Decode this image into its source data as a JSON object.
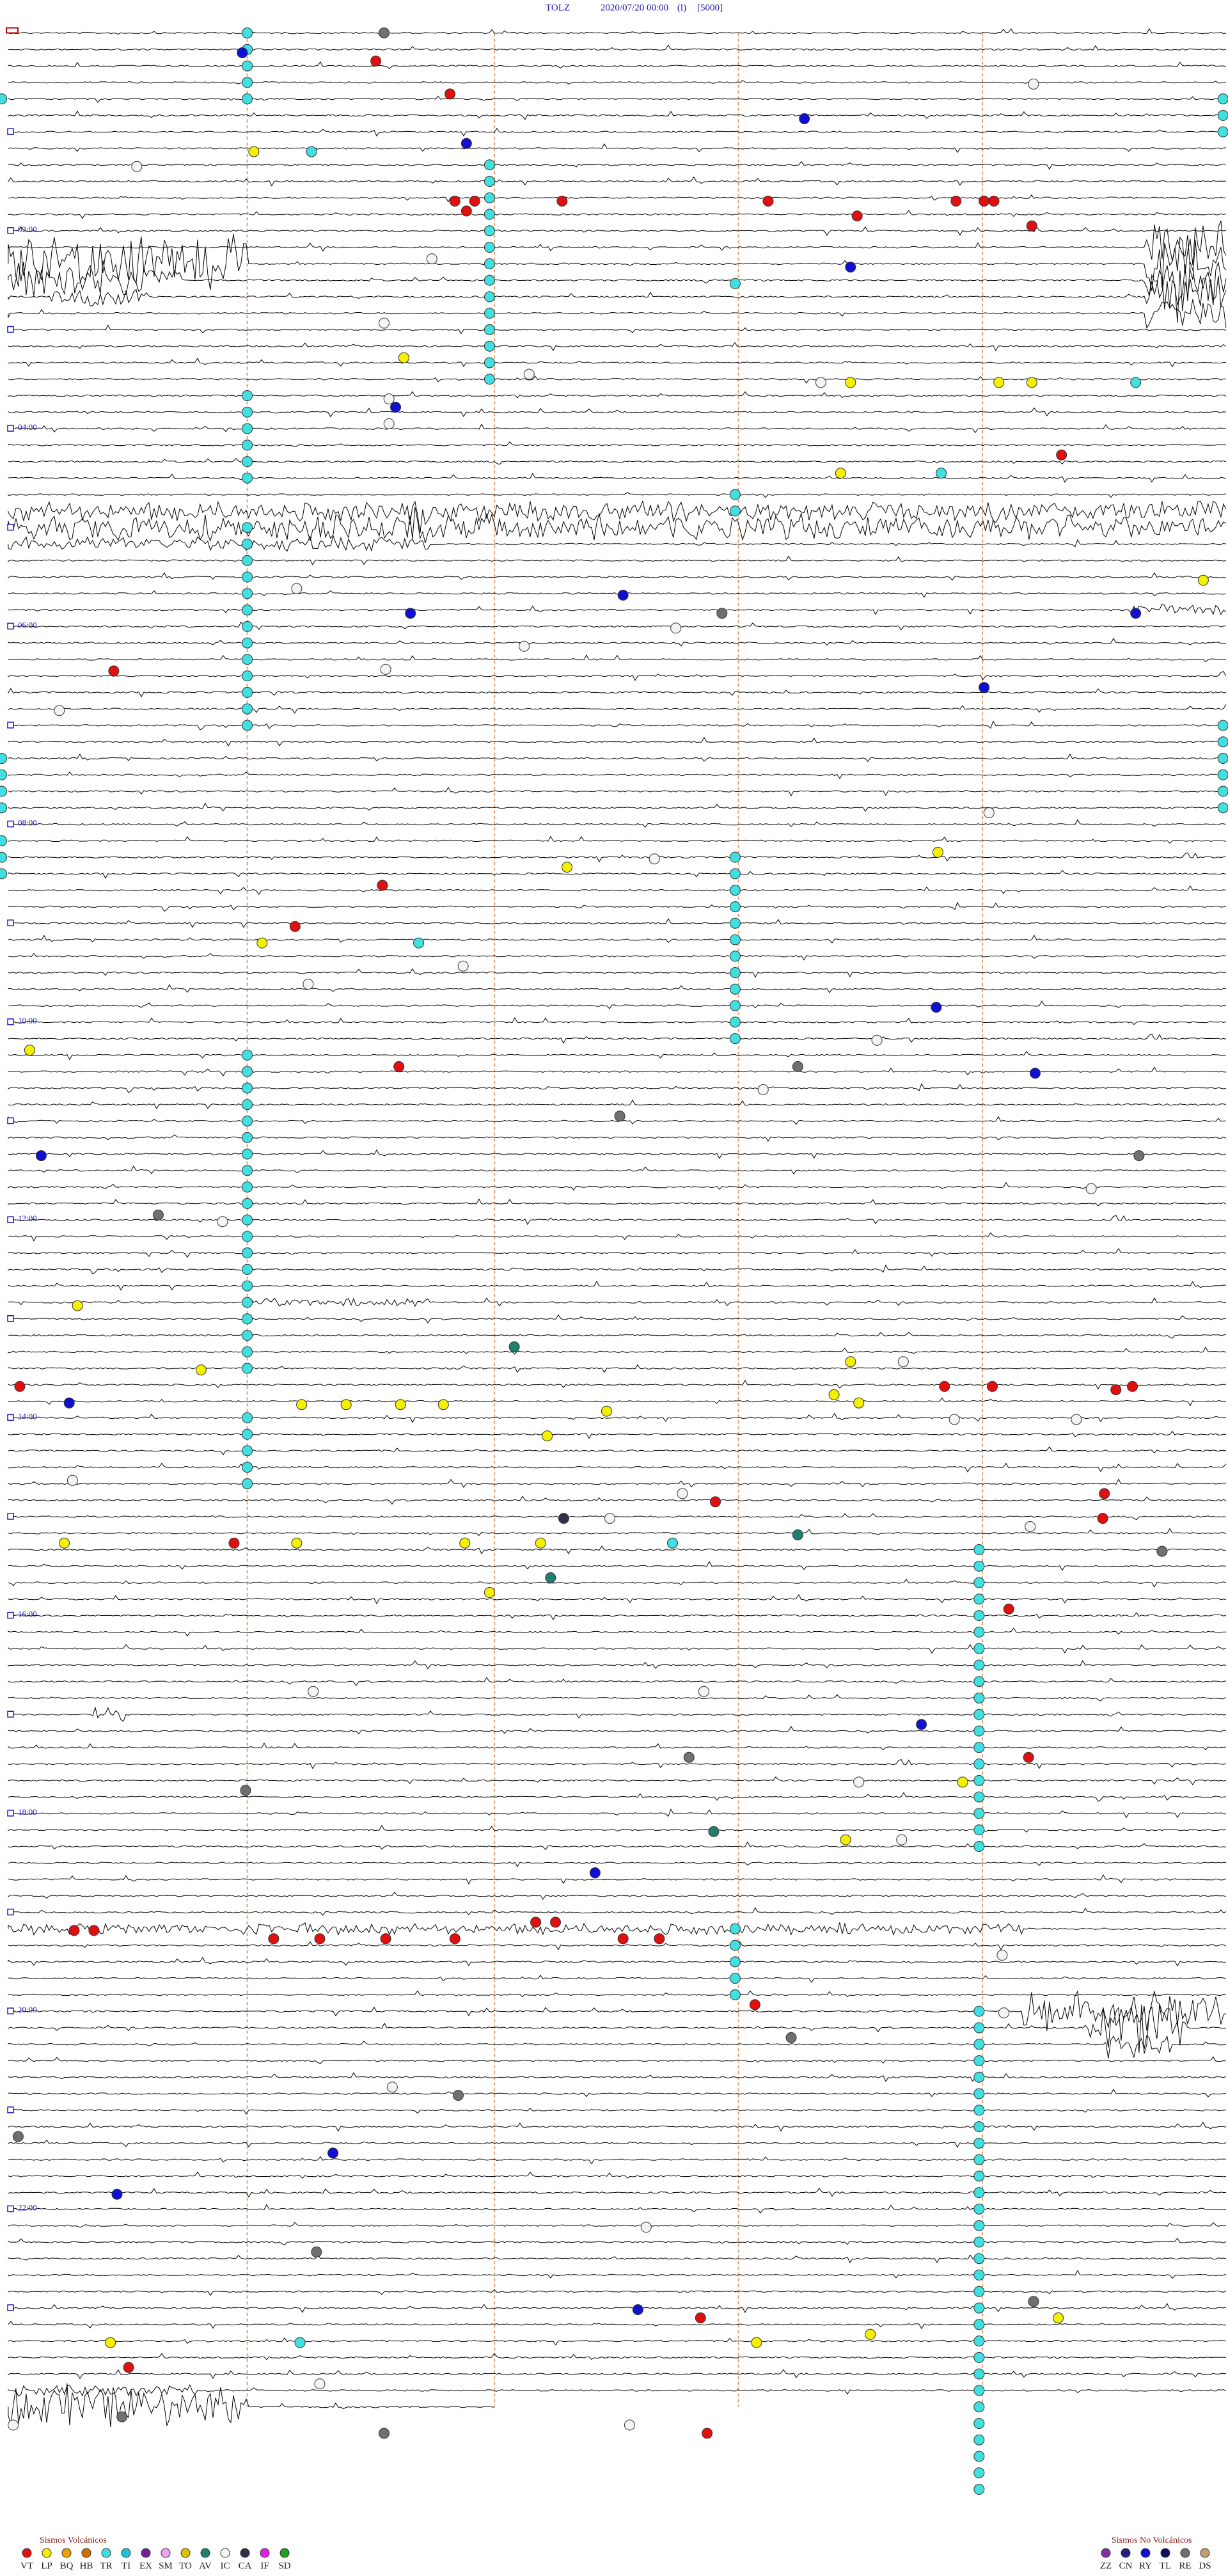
{
  "header": {
    "station": "TOLZ",
    "datetime": "2020/07/20 00:00",
    "channel": "(l)",
    "scale": "[5000]"
  },
  "time_labels": [
    "02:00",
    "04:00",
    "06:00",
    "08:00",
    "10:00",
    "12:00",
    "14:00",
    "16:00",
    "18:00",
    "20:00",
    "22:00"
  ],
  "legend": {
    "volcanic": {
      "title": "Sismos Volcánicos",
      "codes": [
        "VT",
        "LP",
        "BQ",
        "HB",
        "TR",
        "TI",
        "EX",
        "SM",
        "TO",
        "AV",
        "IC",
        "CA",
        "IF",
        "SD"
      ]
    },
    "non_volcanic": {
      "title": "Sismos No Volcánicos",
      "codes": [
        "ZZ",
        "CN",
        "RY",
        "TL",
        "RE",
        "DS"
      ]
    }
  }
}
